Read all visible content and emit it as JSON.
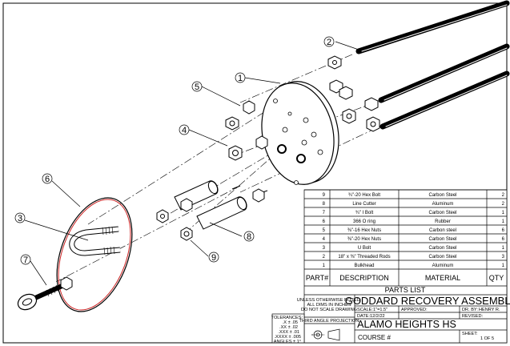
{
  "balloons": [
    "1",
    "2",
    "3",
    "4",
    "5",
    "6",
    "7",
    "8",
    "9"
  ],
  "parts_list": {
    "rows": [
      {
        "part": "9",
        "desc": "¾\"-20 Hex Bolt",
        "material": "Carbon Steel",
        "qty": "2"
      },
      {
        "part": "8",
        "desc": "Line Cutter",
        "material": "Aluminum",
        "qty": "2"
      },
      {
        "part": "7",
        "desc": "¾\" I Bolt",
        "material": "Carbon Steel",
        "qty": "1"
      },
      {
        "part": "6",
        "desc": "366 O ring",
        "material": "Rubber",
        "qty": "1"
      },
      {
        "part": "5",
        "desc": "⅜\"-16 Hex Nuts",
        "material": "Carbon steel",
        "qty": "6"
      },
      {
        "part": "4",
        "desc": "⅜\"-20 Hex Nuts",
        "material": "Carbon Steel",
        "qty": "6"
      },
      {
        "part": "3",
        "desc": "U Bolt",
        "material": "Carbon Steel",
        "qty": "1"
      },
      {
        "part": "2",
        "desc": "18\" x ⅜\" Threaded Rods",
        "material": "Carbon Steel",
        "qty": "3"
      },
      {
        "part": "1",
        "desc": "Bulkhead",
        "material": "Aluminum",
        "qty": "1"
      }
    ],
    "col_part": "PART#",
    "col_desc": "DESCRIPTION",
    "col_material": "MATERIAL",
    "col_qty": "QTY",
    "title": "PARTS LIST"
  },
  "title_block": {
    "notes": [
      "UNLESS OTHERWISE NOTED:",
      "ALL DIMS IN INCHES",
      "DO NOT SCALE DRAWING"
    ],
    "title": "GODDARD RECOVERY ASSEMBLY",
    "scale_label": "SCALE:",
    "scale_value": "1\"=1.5\"",
    "approved_label": "APPROVED:",
    "drby_label": "DR. BY:",
    "drby_value": "HENRY R.",
    "date_label": "DATE:",
    "date_value": "12/2/22",
    "revised_label": "REVISED:",
    "projection": "THIRD ANGLE PROJECTION",
    "school": "ALAMO HEIGHTS HS",
    "course_label": "COURSE #",
    "sheet_label": "SHEET:",
    "sheet_value": "1 OF 5",
    "tolerances": [
      "TOLERANCES:",
      ".X ± .05",
      ".XX ± .02",
      ".XXX ± .01",
      ".XXXX ± .005",
      "ANGLES ± 1°"
    ]
  }
}
